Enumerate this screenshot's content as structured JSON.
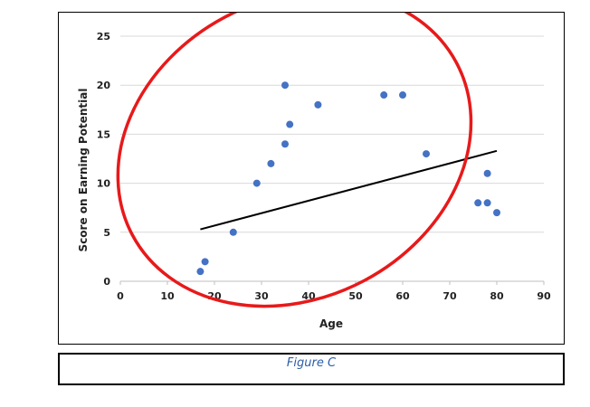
{
  "chart_data": {
    "type": "scatter",
    "title": "",
    "xlabel": "Age",
    "ylabel": "Score on Earning Potential",
    "xlim": [
      0,
      90
    ],
    "ylim": [
      0,
      25
    ],
    "xticks": [
      0,
      10,
      20,
      30,
      40,
      50,
      60,
      70,
      80,
      90
    ],
    "yticks": [
      0,
      5,
      10,
      15,
      20,
      25
    ],
    "grid": "horizontal",
    "series": [
      {
        "name": "Score",
        "color": "#4472c4",
        "points": [
          {
            "x": 17,
            "y": 1
          },
          {
            "x": 18,
            "y": 2
          },
          {
            "x": 24,
            "y": 5
          },
          {
            "x": 29,
            "y": 10
          },
          {
            "x": 32,
            "y": 12
          },
          {
            "x": 35,
            "y": 14
          },
          {
            "x": 35,
            "y": 20
          },
          {
            "x": 36,
            "y": 16
          },
          {
            "x": 42,
            "y": 18
          },
          {
            "x": 56,
            "y": 19
          },
          {
            "x": 60,
            "y": 19
          },
          {
            "x": 65,
            "y": 13
          },
          {
            "x": 76,
            "y": 8
          },
          {
            "x": 78,
            "y": 11
          },
          {
            "x": 78,
            "y": 8
          },
          {
            "x": 80,
            "y": 7
          }
        ]
      }
    ],
    "trendline": {
      "type": "linear",
      "color": "#000000",
      "start": {
        "x": 17,
        "y": 5.3
      },
      "end": {
        "x": 80,
        "y": 13.3
      }
    },
    "annotation": {
      "shape": "ellipse",
      "color": "#e8191a",
      "center": {
        "x": 37,
        "y": 13.5
      },
      "radius_x": 39,
      "radius_y": 15.2,
      "rotation_deg": -28,
      "description": "red ellipse circling the data points"
    }
  },
  "caption": {
    "text": "Figure C"
  }
}
